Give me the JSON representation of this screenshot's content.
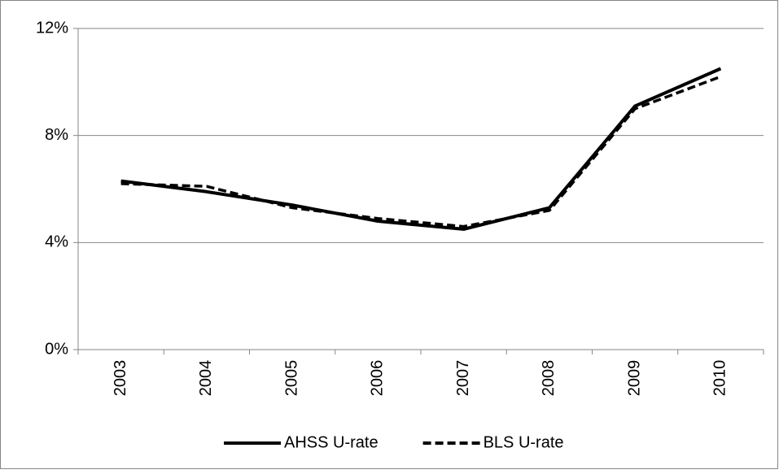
{
  "chart_data": {
    "type": "line",
    "categories": [
      "2003",
      "2004",
      "2005",
      "2006",
      "2007",
      "2008",
      "2009",
      "2010"
    ],
    "series": [
      {
        "name": "AHSS U-rate",
        "color": "#000000",
        "dash": "solid",
        "values": [
          6.3,
          5.9,
          5.4,
          4.8,
          4.5,
          5.3,
          9.1,
          10.5
        ]
      },
      {
        "name": "BLS U-rate",
        "color": "#000000",
        "dash": "dashed",
        "values": [
          6.2,
          6.1,
          5.3,
          4.9,
          4.6,
          5.2,
          9.0,
          10.2
        ]
      }
    ],
    "ylim": [
      0,
      12
    ],
    "yticks": [
      {
        "value": 0,
        "label": "0%"
      },
      {
        "value": 4,
        "label": "4%"
      },
      {
        "value": 8,
        "label": "8%"
      },
      {
        "value": 12,
        "label": "12%"
      }
    ],
    "grid": true,
    "legend": "bottom"
  }
}
